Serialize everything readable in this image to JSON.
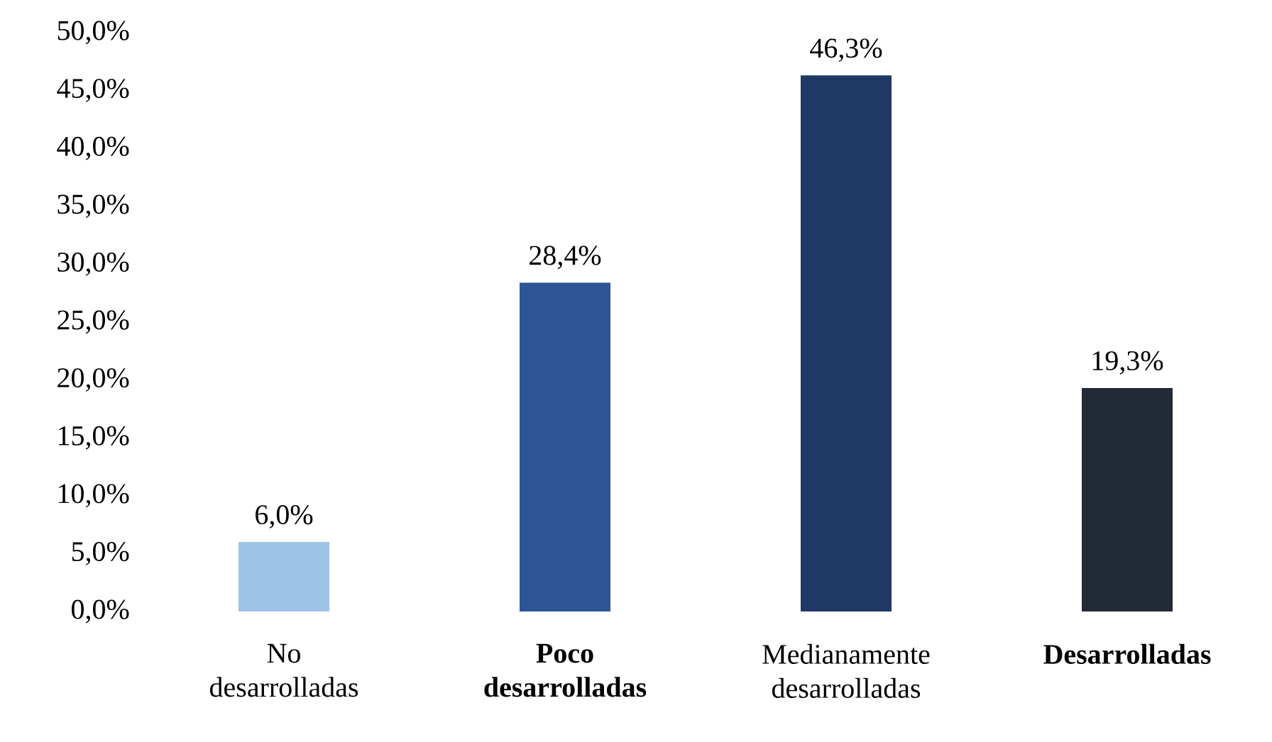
{
  "chart_data": {
    "type": "bar",
    "categories": [
      "No desarrolladas",
      "**Poco desarrolladas**",
      "Medianamente desarrolladas",
      "**Desarrolladas**"
    ],
    "values": [
      6.0,
      28.4,
      46.3,
      19.3
    ],
    "colors": [
      "#9dc3e6",
      "#2f5597",
      "#1f3864",
      "#222a35"
    ],
    "value_labels": [
      "6,0%",
      "28,4%",
      "46,3%",
      "19,3%"
    ],
    "ylim": [
      0,
      50
    ],
    "yticks": [
      {
        "value": 0,
        "label": "0,0%"
      },
      {
        "value": 5,
        "label": "5,0%"
      },
      {
        "value": 10,
        "label": "10,0%"
      },
      {
        "value": 15,
        "label": "15,0%"
      },
      {
        "value": 20,
        "label": "20,0%"
      },
      {
        "value": 25,
        "label": "25,0%"
      },
      {
        "value": 30,
        "label": "30,0%"
      },
      {
        "value": 35,
        "label": "35,0%"
      },
      {
        "value": 40,
        "label": "40,0%"
      },
      {
        "value": 45,
        "label": "45,0%"
      },
      {
        "value": 50,
        "label": "50,0%"
      }
    ],
    "grid": false
  }
}
